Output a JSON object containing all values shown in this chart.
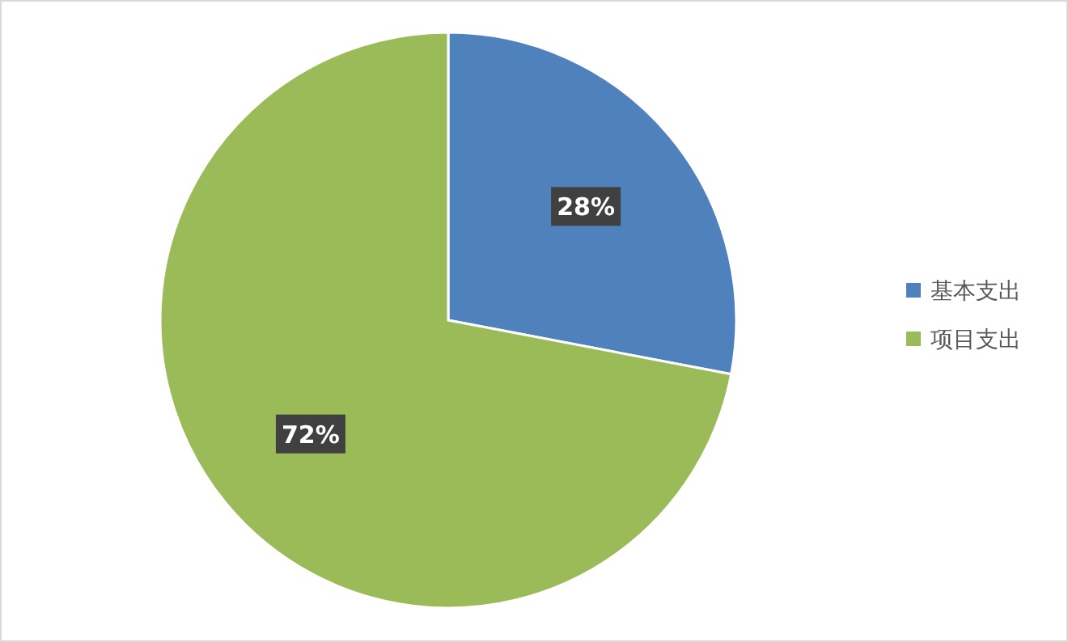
{
  "chart_data": {
    "type": "pie",
    "categories": [
      "基本支出",
      "项目支出"
    ],
    "values": [
      28,
      72
    ],
    "value_labels": [
      "28%",
      "72%"
    ],
    "colors": [
      "#4f81bd",
      "#9bbb59"
    ],
    "legend": "right"
  }
}
